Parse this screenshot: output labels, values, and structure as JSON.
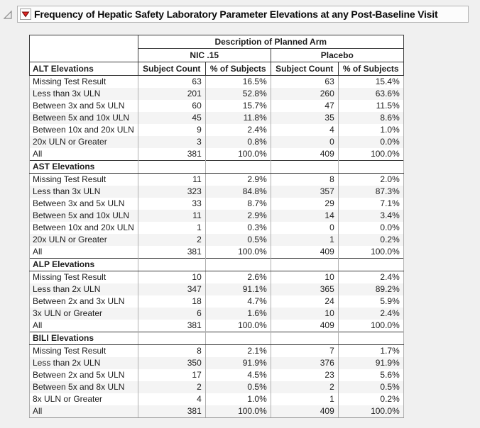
{
  "outline": {
    "title": "Frequency of Hepatic Safety Laboratory Parameter Elevations at any Post-Baseline Visit",
    "disclosure_icon": "open-disclosure-triangle-icon",
    "menu_icon": "red-triangle-menu-icon"
  },
  "colors": {
    "page_background": "#f0f0f0",
    "red_triangle": "#e12a26",
    "red_triangle_border": "#6b0000",
    "header_border": "#3a3a3a",
    "grid_border": "#b0b0b0",
    "row_band": "#f4f4f4"
  },
  "table": {
    "group_header": "Description of Planned Arm",
    "arms": [
      "NIC .15",
      "Placebo"
    ],
    "subheaders": [
      "Subject Count",
      "% of Subjects",
      "Subject Count",
      "% of Subjects"
    ],
    "sections": [
      {
        "label": "ALT Elevations",
        "rows": [
          {
            "label": "Missing Test Result",
            "values": [
              "63",
              "16.5%",
              "63",
              "15.4%"
            ]
          },
          {
            "label": "Less than 3x ULN",
            "values": [
              "201",
              "52.8%",
              "260",
              "63.6%"
            ]
          },
          {
            "label": "Between 3x and 5x ULN",
            "values": [
              "60",
              "15.7%",
              "47",
              "11.5%"
            ]
          },
          {
            "label": "Between 5x and 10x ULN",
            "values": [
              "45",
              "11.8%",
              "35",
              "8.6%"
            ]
          },
          {
            "label": "Between 10x and 20x ULN",
            "values": [
              "9",
              "2.4%",
              "4",
              "1.0%"
            ]
          },
          {
            "label": "20x ULN or Greater",
            "values": [
              "3",
              "0.8%",
              "0",
              "0.0%"
            ]
          },
          {
            "label": "All",
            "values": [
              "381",
              "100.0%",
              "409",
              "100.0%"
            ]
          }
        ]
      },
      {
        "label": "AST Elevations",
        "rows": [
          {
            "label": "Missing Test Result",
            "values": [
              "11",
              "2.9%",
              "8",
              "2.0%"
            ]
          },
          {
            "label": "Less than 3x ULN",
            "values": [
              "323",
              "84.8%",
              "357",
              "87.3%"
            ]
          },
          {
            "label": "Between 3x and 5x ULN",
            "values": [
              "33",
              "8.7%",
              "29",
              "7.1%"
            ]
          },
          {
            "label": "Between 5x and 10x ULN",
            "values": [
              "11",
              "2.9%",
              "14",
              "3.4%"
            ]
          },
          {
            "label": "Between 10x and 20x ULN",
            "values": [
              "1",
              "0.3%",
              "0",
              "0.0%"
            ]
          },
          {
            "label": "20x ULN or Greater",
            "values": [
              "2",
              "0.5%",
              "1",
              "0.2%"
            ]
          },
          {
            "label": "All",
            "values": [
              "381",
              "100.0%",
              "409",
              "100.0%"
            ]
          }
        ]
      },
      {
        "label": "ALP Elevations",
        "rows": [
          {
            "label": "Missing Test Result",
            "values": [
              "10",
              "2.6%",
              "10",
              "2.4%"
            ]
          },
          {
            "label": "Less than 2x ULN",
            "values": [
              "347",
              "91.1%",
              "365",
              "89.2%"
            ]
          },
          {
            "label": "Between 2x and 3x ULN",
            "values": [
              "18",
              "4.7%",
              "24",
              "5.9%"
            ]
          },
          {
            "label": "3x ULN or Greater",
            "values": [
              "6",
              "1.6%",
              "10",
              "2.4%"
            ]
          },
          {
            "label": "All",
            "values": [
              "381",
              "100.0%",
              "409",
              "100.0%"
            ]
          }
        ]
      },
      {
        "label": "BILI Elevations",
        "rows": [
          {
            "label": "Missing Test Result",
            "values": [
              "8",
              "2.1%",
              "7",
              "1.7%"
            ]
          },
          {
            "label": "Less than 2x ULN",
            "values": [
              "350",
              "91.9%",
              "376",
              "91.9%"
            ]
          },
          {
            "label": "Between 2x and 5x ULN",
            "values": [
              "17",
              "4.5%",
              "23",
              "5.6%"
            ]
          },
          {
            "label": "Between 5x and 8x ULN",
            "values": [
              "2",
              "0.5%",
              "2",
              "0.5%"
            ]
          },
          {
            "label": "8x ULN or Greater",
            "values": [
              "4",
              "1.0%",
              "1",
              "0.2%"
            ]
          },
          {
            "label": "All",
            "values": [
              "381",
              "100.0%",
              "409",
              "100.0%"
            ]
          }
        ]
      }
    ]
  }
}
